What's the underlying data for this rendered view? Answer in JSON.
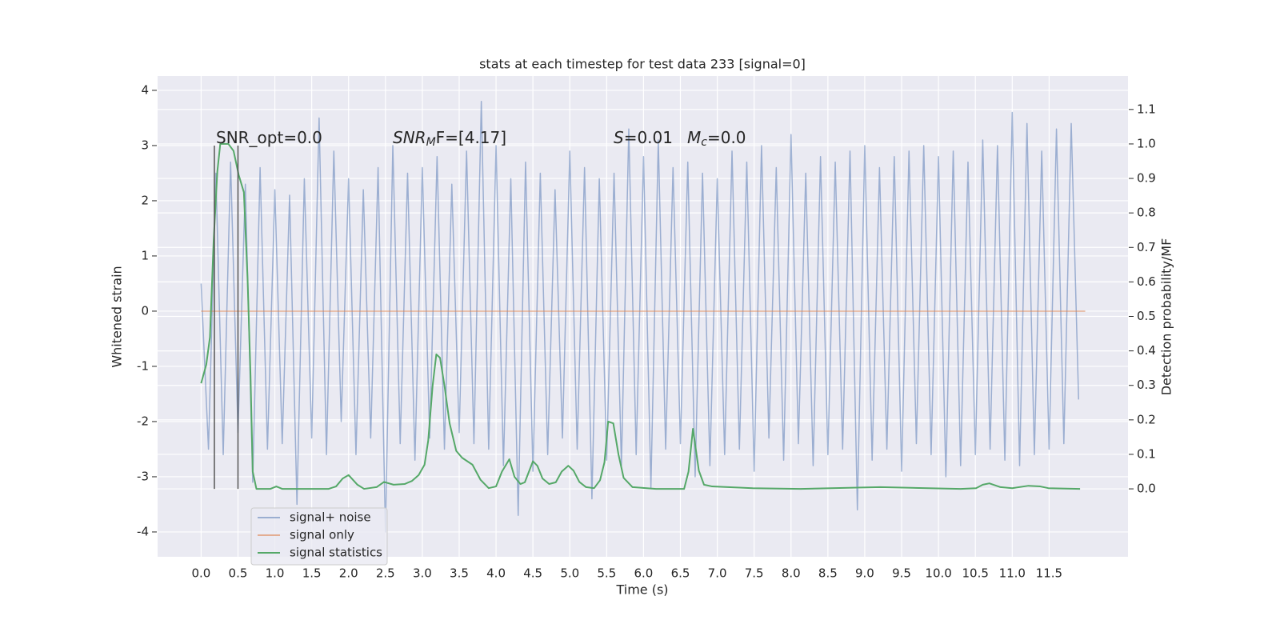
{
  "chart_data": {
    "type": "line",
    "title": "stats at each timestep for test data 233 [signal=0]",
    "xlabel": "Time (s)",
    "ylabel": "Whitened strain",
    "y2label": "Detection probability/MF",
    "xlim": [
      -0.59,
      12.57
    ],
    "ylim": [
      -4.45,
      4.26
    ],
    "y2lim": [
      -0.197,
      1.197
    ],
    "xticks": [
      {
        "value": 0,
        "label": "0.0"
      },
      {
        "value": 0.5,
        "label": "0.5"
      },
      {
        "value": 1,
        "label": "1.0"
      },
      {
        "value": 1.5,
        "label": "1.5"
      },
      {
        "value": 2,
        "label": "2.0"
      },
      {
        "value": 2.5,
        "label": "2.5"
      },
      {
        "value": 3,
        "label": "3.0"
      },
      {
        "value": 3.5,
        "label": "3.5"
      },
      {
        "value": 4,
        "label": "4.0"
      },
      {
        "value": 4.5,
        "label": "4.5"
      },
      {
        "value": 5,
        "label": "5.0"
      },
      {
        "value": 5.5,
        "label": "5.5"
      },
      {
        "value": 6,
        "label": "6.0"
      },
      {
        "value": 6.5,
        "label": "6.5"
      },
      {
        "value": 7,
        "label": "7.0"
      },
      {
        "value": 7.5,
        "label": "7.5"
      },
      {
        "value": 8,
        "label": "8.0"
      },
      {
        "value": 8.5,
        "label": "8.5"
      },
      {
        "value": 9,
        "label": "9.0"
      },
      {
        "value": 9.5,
        "label": "9.5"
      },
      {
        "value": 10,
        "label": "10.0"
      },
      {
        "value": 10.5,
        "label": "10.5"
      },
      {
        "value": 11,
        "label": "11.0"
      },
      {
        "value": 11.5,
        "label": "11.5"
      }
    ],
    "yticks": [
      -4,
      -3,
      -2,
      -1,
      0,
      1,
      2,
      3,
      4
    ],
    "y2ticks": [
      {
        "value": 0,
        "label": "0.0"
      },
      0.1,
      0.2,
      0.3,
      0.4,
      0.5,
      0.6,
      0.7,
      0.8,
      0.9,
      {
        "value": 1,
        "label": "1.0"
      },
      1.1
    ],
    "grid": true,
    "legend": "lower left",
    "annotations": [
      [
        "SNR_opt=0.0"
      ],
      [
        "SNR",
        "M",
        "F=[4.17]"
      ],
      [
        "S",
        "=0.01"
      ],
      [
        "M",
        "c",
        "=0.0"
      ]
    ],
    "vlines": {
      "x": [
        0.18,
        0.5
      ],
      "ymin": -3.22,
      "ymax": 3.0,
      "color": "#555555"
    },
    "series": [
      {
        "name": "signal+ noise",
        "color": "#4c72b0",
        "opacity": 0.5,
        "x": [
          0.0,
          0.1,
          0.2,
          0.3,
          0.4,
          0.5,
          0.6,
          0.7,
          0.8,
          0.9,
          1.0,
          1.1,
          1.2,
          1.3,
          1.4,
          1.5,
          1.6,
          1.7,
          1.8,
          1.9,
          2.0,
          2.1,
          2.2,
          2.3,
          2.4,
          2.5,
          2.6,
          2.7,
          2.8,
          2.9,
          3.0,
          3.1,
          3.2,
          3.3,
          3.4,
          3.5,
          3.6,
          3.7,
          3.8,
          3.9,
          4.0,
          4.1,
          4.2,
          4.3,
          4.4,
          4.5,
          4.6,
          4.7,
          4.8,
          4.9,
          5.0,
          5.1,
          5.2,
          5.3,
          5.4,
          5.5,
          5.6,
          5.7,
          5.8,
          5.9,
          6.0,
          6.1,
          6.2,
          6.3,
          6.4,
          6.5,
          6.6,
          6.7,
          6.8,
          6.9,
          7.0,
          7.1,
          7.2,
          7.3,
          7.4,
          7.5,
          7.6,
          7.7,
          7.8,
          7.9,
          8.0,
          8.1,
          8.2,
          8.3,
          8.4,
          8.5,
          8.6,
          8.7,
          8.8,
          8.9,
          9.0,
          9.1,
          9.2,
          9.3,
          9.4,
          9.5,
          9.6,
          9.7,
          9.8,
          9.9,
          10.0,
          10.1,
          10.2,
          10.3,
          10.4,
          10.5,
          10.6,
          10.7,
          10.8,
          10.9,
          11.0,
          11.1,
          11.2,
          11.3,
          11.4,
          11.5,
          11.6,
          11.7,
          11.8,
          11.9
        ],
        "values": [
          0.5,
          -2.5,
          2.5,
          -2.6,
          2.7,
          -2.2,
          2.3,
          -3.1,
          2.6,
          -2.5,
          2.2,
          -2.4,
          2.1,
          -3.5,
          2.4,
          -2.3,
          3.5,
          -2.6,
          2.9,
          -2.0,
          2.4,
          -2.6,
          2.2,
          -2.3,
          2.6,
          -4.0,
          3.0,
          -2.4,
          2.5,
          -2.7,
          2.6,
          -2.3,
          2.8,
          -2.5,
          2.3,
          -2.2,
          2.9,
          -2.4,
          3.8,
          -2.5,
          3.0,
          -2.8,
          2.4,
          -3.7,
          2.7,
          -2.9,
          2.5,
          -2.6,
          2.2,
          -2.3,
          2.9,
          -2.5,
          2.6,
          -3.4,
          2.4,
          -2.7,
          2.5,
          -2.8,
          3.3,
          -2.6,
          2.8,
          -3.2,
          3.1,
          -2.5,
          2.6,
          -2.4,
          2.7,
          -3.0,
          2.5,
          -2.8,
          2.4,
          -2.6,
          2.9,
          -2.5,
          2.7,
          -2.9,
          3.0,
          -2.3,
          2.6,
          -2.7,
          3.2,
          -2.4,
          2.5,
          -2.8,
          2.8,
          -2.6,
          2.7,
          -2.5,
          2.9,
          -3.6,
          3.0,
          -2.7,
          2.6,
          -2.5,
          2.8,
          -2.9,
          2.9,
          -2.4,
          3.0,
          -2.6,
          2.8,
          -3.0,
          2.9,
          -2.8,
          2.7,
          -2.6,
          3.1,
          -2.5,
          3.0,
          -2.7,
          3.6,
          -2.8,
          3.4,
          -2.6,
          2.9,
          -2.5,
          3.3,
          -2.4,
          3.4,
          -1.6
        ]
      },
      {
        "name": "signal only",
        "color": "#dd8452",
        "opacity": 0.6,
        "x": [
          0.0,
          11.99
        ],
        "values": [
          0,
          0
        ]
      },
      {
        "name": "signal statistics",
        "color": "#55a868",
        "opacity": 1,
        "axis": "y2",
        "x": [
          0,
          0.07,
          0.12,
          0.17,
          0.22,
          0.26,
          0.37,
          0.44,
          0.51,
          0.58,
          0.63,
          0.67,
          0.7,
          0.75,
          0.94,
          1.02,
          1.1,
          1.73,
          1.83,
          1.92,
          2.0,
          2.12,
          2.21,
          2.38,
          2.48,
          2.61,
          2.76,
          2.86,
          2.95,
          3.03,
          3.08,
          3.14,
          3.19,
          3.24,
          3.3,
          3.37,
          3.46,
          3.54,
          3.68,
          3.79,
          3.9,
          4.0,
          4.08,
          4.18,
          4.25,
          4.33,
          4.39,
          4.5,
          4.56,
          4.63,
          4.72,
          4.81,
          4.89,
          4.98,
          5.05,
          5.13,
          5.22,
          5.33,
          5.41,
          5.47,
          5.52,
          5.59,
          5.66,
          5.73,
          5.85,
          6.17,
          6.55,
          6.61,
          6.67,
          6.75,
          6.82,
          6.93,
          7.48,
          8.13,
          9.21,
          10.3,
          10.51,
          10.6,
          10.69,
          10.84,
          11.0,
          11.22,
          11.38,
          11.49,
          11.92
        ],
        "values": [
          0.306,
          0.36,
          0.44,
          0.72,
          0.92,
          1.0,
          1.0,
          0.98,
          0.91,
          0.86,
          0.61,
          0.33,
          0.05,
          0.0,
          0.0,
          0.007,
          0.0,
          0.0,
          0.007,
          0.03,
          0.04,
          0.012,
          0.0,
          0.005,
          0.02,
          0.012,
          0.014,
          0.023,
          0.04,
          0.07,
          0.14,
          0.3,
          0.39,
          0.38,
          0.3,
          0.19,
          0.11,
          0.09,
          0.07,
          0.026,
          0.002,
          0.007,
          0.05,
          0.086,
          0.035,
          0.014,
          0.019,
          0.08,
          0.067,
          0.03,
          0.014,
          0.019,
          0.05,
          0.067,
          0.053,
          0.02,
          0.005,
          0.002,
          0.025,
          0.077,
          0.195,
          0.19,
          0.1,
          0.032,
          0.005,
          0.0,
          0.0,
          0.05,
          0.174,
          0.053,
          0.012,
          0.007,
          0.002,
          0.0,
          0.005,
          0.0,
          0.002,
          0.012,
          0.016,
          0.005,
          0.002,
          0.009,
          0.007,
          0.002,
          0.0
        ]
      }
    ]
  }
}
